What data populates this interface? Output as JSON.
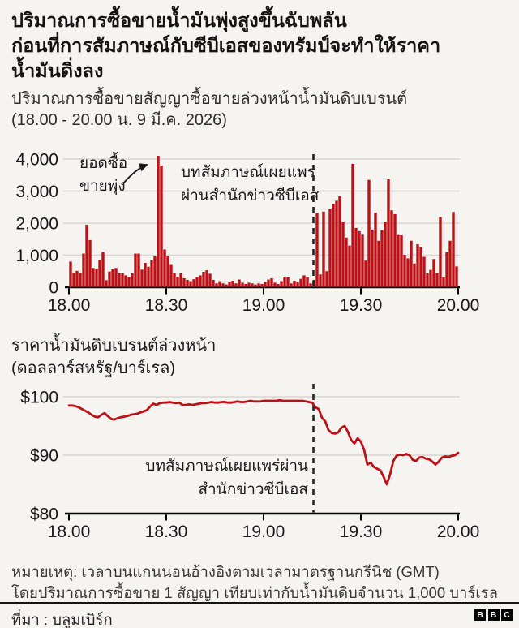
{
  "header": {
    "title_lines": [
      "ปริมาณการซื้อขายน้ำมันพุ่งสูงขึ้นฉับพลัน",
      "ก่อนที่การสัมภาษณ์กับซีบีเอสของทรัมป์จะทำให้ราคา",
      "น้ำมันดิ่งลง"
    ],
    "subtitle_lines": [
      "ปริมาณการซื้อขายสัญญาซื้อขายล่วงหน้าน้ำมันดิบเบรนต์",
      "(18.00 - 20.00 น. 9 มี.ค. 2026)"
    ]
  },
  "volume_chart": {
    "spike_annotation_lines": [
      "ยอดซื้อ",
      "ขายพุ่ง"
    ],
    "event_annotation_lines": [
      "บทสัมภาษณ์เผยแพร่",
      "ผ่านสำนักข่าวซีบีเอส"
    ]
  },
  "price_chart": {
    "title_lines": [
      "ราคาน้ำมันดิบเบรนต์ล่วงหน้า",
      "(ดอลลาร์สหรัฐ/บาร์เรล)"
    ],
    "event_annotation_lines": [
      "บทสัมภาษณ์เผยแพร่ผ่าน",
      "สำนักข่าวซีบีเอส"
    ]
  },
  "footer": {
    "note_lines": [
      "หมายเหตุ: เวลาบนแกนนอนอ้างอิงตามเวลามาตรฐานกรีนิช (GMT)",
      "โดยปริมาณการซื้อขาย 1 สัญญา เทียบเท่ากับน้ำมันดิบจำนวน 1,000 บาร์เรล"
    ],
    "source": "ที่มา : บลูมเบิร์ก",
    "logo_letters": [
      "B",
      "B",
      "C"
    ]
  },
  "colors": {
    "accent_red": "#bd1016",
    "grid": "#d8d5d1",
    "axis": "#000000",
    "dashed_line": "#242424",
    "background": "#f5f4f1"
  },
  "chart_data": [
    {
      "type": "bar",
      "title": "ปริมาณการซื้อขายสัญญาซื้อขายล่วงหน้าน้ำมันดิบเบรนต์ (18.00 - 20.00 น. 9 มี.ค. 2026)",
      "x": {
        "start": "18.00",
        "end": "20.00",
        "step_minutes": 1,
        "timezone": "GMT"
      },
      "x_ticks": [
        0,
        30,
        60,
        90,
        120
      ],
      "x_tick_labels": [
        "18.00",
        "18.30",
        "19.00",
        "19.30",
        "20.00"
      ],
      "y_ticks": [
        0,
        1000,
        2000,
        3000,
        4000
      ],
      "y_tick_labels": [
        "0",
        "1,000",
        "2,000",
        "3,000",
        "4,000"
      ],
      "ylim": [
        0,
        4400
      ],
      "grid": true,
      "color": "#bd1016",
      "event_minute": 75,
      "event_label": "บทสัมภาษณ์เผยแพร่ผ่านสำนักข่าวซีบีเอส",
      "values": [
        800,
        450,
        510,
        450,
        1050,
        1950,
        1470,
        600,
        580,
        860,
        1100,
        220,
        490,
        560,
        600,
        430,
        440,
        370,
        310,
        430,
        1050,
        1050,
        550,
        760,
        640,
        840,
        960,
        4100,
        3800,
        1180,
        960,
        720,
        440,
        330,
        430,
        280,
        230,
        190,
        250,
        310,
        370,
        480,
        530,
        420,
        230,
        120,
        190,
        120,
        85,
        160,
        200,
        120,
        240,
        140,
        100,
        140,
        120,
        85,
        120,
        100,
        160,
        240,
        280,
        140,
        100,
        190,
        330,
        310,
        120,
        200,
        160,
        260,
        370,
        310,
        120,
        230,
        2320,
        400,
        2360,
        500,
        2450,
        2600,
        2700,
        2840,
        2050,
        1550,
        1300,
        3850,
        1850,
        1750,
        1640,
        830,
        3350,
        1800,
        2330,
        1450,
        1780,
        2050,
        3370,
        2400,
        2280,
        1630,
        1620,
        1010,
        900,
        1450,
        740,
        1340,
        1250,
        950,
        430,
        540,
        880,
        440,
        2190,
        310,
        1100,
        1450,
        2350,
        650
      ]
    },
    {
      "type": "line",
      "title": "ราคาน้ำมันดิบเบรนต์ล่วงหน้า (ดอลลาร์สหรัฐ/บาร์เรล)",
      "x": {
        "start": "18.00",
        "end": "20.00",
        "step_minutes": 1,
        "timezone": "GMT"
      },
      "x_ticks": [
        0,
        30,
        60,
        90,
        120
      ],
      "x_tick_labels": [
        "18.00",
        "18.30",
        "19.00",
        "19.30",
        "20.00"
      ],
      "y_ticks": [
        80,
        90,
        100
      ],
      "y_tick_labels": [
        "$80",
        "$90",
        "$100"
      ],
      "ylim": [
        80,
        102
      ],
      "grid": true,
      "color": "#bd1016",
      "event_minute": 75,
      "event_label": "บทสัมภาษณ์เผยแพร่ผ่านสำนักข่าวซีบีเอส",
      "values": [
        98.5,
        98.5,
        98.4,
        98.2,
        97.9,
        97.6,
        97.3,
        96.9,
        96.6,
        96.5,
        96.9,
        97.2,
        96.7,
        96.2,
        96.1,
        96.3,
        96.5,
        96.6,
        96.7,
        96.9,
        97.0,
        97.1,
        97.3,
        97.5,
        97.7,
        98.3,
        98.8,
        98.6,
        98.9,
        99.0,
        99.0,
        99.1,
        99.0,
        98.9,
        99.0,
        98.6,
        98.6,
        98.7,
        98.6,
        98.7,
        98.8,
        98.9,
        98.9,
        99.0,
        99.1,
        99.0,
        99.0,
        99.1,
        99.1,
        99.0,
        99.0,
        99.1,
        99.2,
        99.1,
        99.1,
        99.2,
        99.3,
        99.2,
        99.2,
        99.2,
        99.3,
        99.3,
        99.3,
        99.3,
        99.3,
        99.4,
        99.3,
        99.3,
        99.3,
        99.3,
        99.3,
        99.3,
        99.3,
        99.2,
        99.1,
        99.0,
        98.2,
        97.9,
        96.4,
        95.8,
        94.3,
        93.8,
        93.7,
        93.9,
        94.7,
        95.0,
        94.0,
        92.6,
        92.0,
        92.9,
        92.3,
        90.9,
        88.4,
        88.7,
        88.0,
        87.7,
        87.4,
        86.3,
        85.0,
        86.7,
        89.0,
        89.9,
        90.1,
        90.0,
        90.2,
        90.0,
        89.2,
        89.0,
        89.6,
        89.7,
        89.4,
        89.3,
        88.9,
        88.4,
        88.9,
        89.6,
        89.8,
        89.7,
        89.9,
        90.0,
        90.4
      ]
    }
  ]
}
